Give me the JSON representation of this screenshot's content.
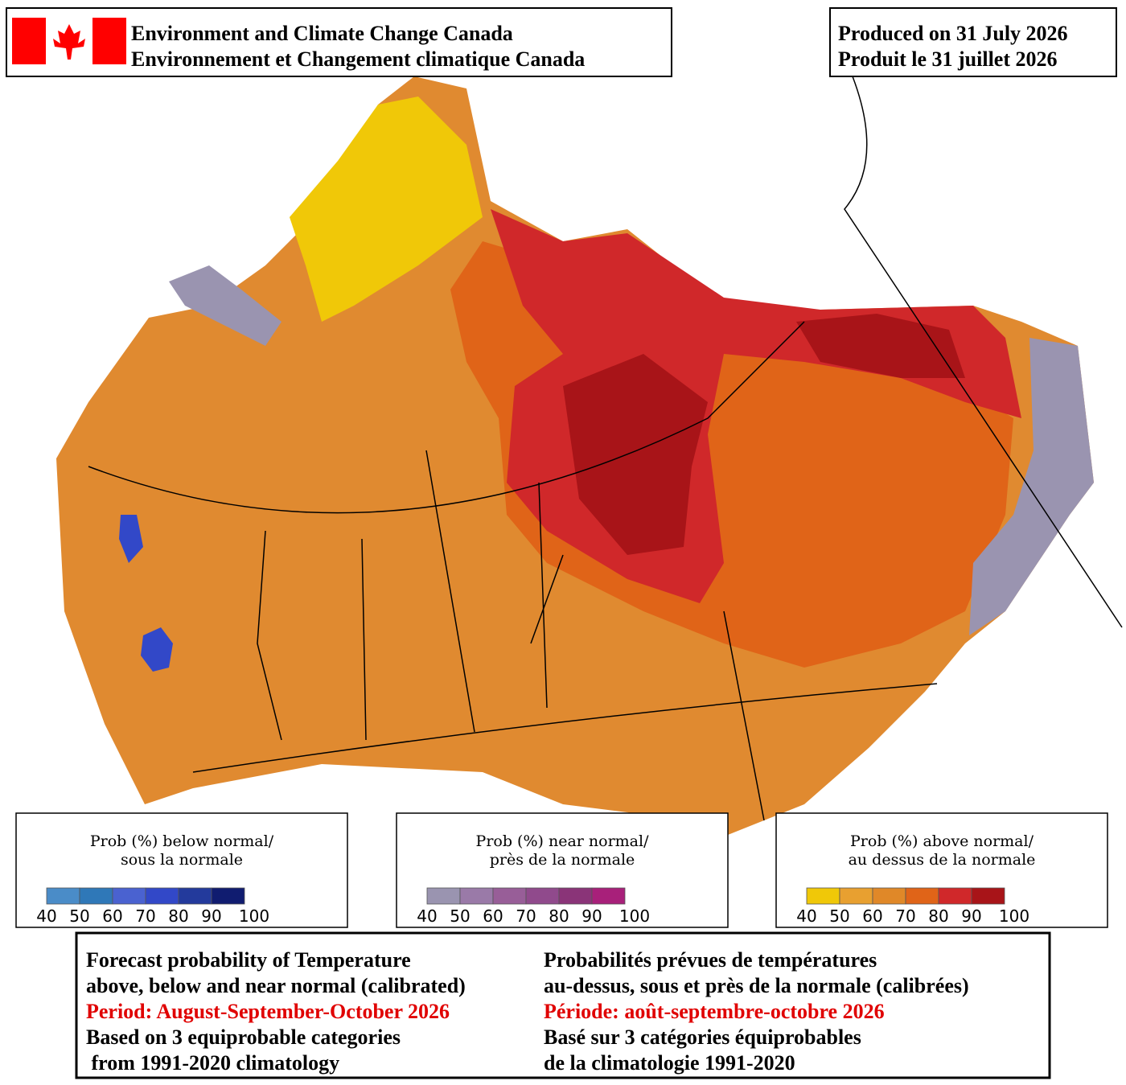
{
  "header": {
    "agency_en": "Environment and Climate Change Canada",
    "agency_fr": "Environnement et Changement climatique Canada",
    "produced_en": "Produced on 31 July 2026",
    "produced_fr": "Produit le 31 juillet 2026"
  },
  "legends": [
    {
      "title": [
        "Prob (%) below normal/",
        "sous la normale"
      ],
      "colors": [
        "#4a8cc8",
        "#2f78b8",
        "#4a62d0",
        "#3248c8",
        "#233a9c",
        "#101c70"
      ],
      "ticks": [
        40,
        50,
        60,
        70,
        80,
        90,
        100
      ]
    },
    {
      "title": [
        "Prob (%) near normal/",
        "près de la normale"
      ],
      "colors": [
        "#9a94b0",
        "#9a7aa8",
        "#985e98",
        "#904a8c",
        "#8a3478",
        "#a8207a"
      ],
      "ticks": [
        40,
        50,
        60,
        70,
        80,
        90,
        100
      ]
    },
    {
      "title": [
        "Prob (%) above normal/",
        "au dessus de la normale"
      ],
      "colors": [
        "#f0c808",
        "#e8a030",
        "#e08828",
        "#e06418",
        "#d0282a",
        "#a81418"
      ],
      "ticks": [
        40,
        50,
        60,
        70,
        80,
        90,
        100
      ]
    }
  ],
  "footer": {
    "left": [
      {
        "text": "Forecast probability of Temperature",
        "color": "#000000"
      },
      {
        "text": "above, below and near normal (calibrated)",
        "color": "#000000"
      },
      {
        "text": "Period: August-September-October 2026",
        "color": "#e00000"
      },
      {
        "text": "Based on 3 equiprobable categories",
        "color": "#000000"
      },
      {
        "text": " from 1991-2020 climatology",
        "color": "#000000"
      }
    ],
    "right": [
      {
        "text": "Probabilités prévues de températures",
        "color": "#000000"
      },
      {
        "text": "au-dessus, sous et près de la normale (calibrées)",
        "color": "#000000"
      },
      {
        "text": "Période: août-septembre-octobre 2026",
        "color": "#e00000"
      },
      {
        "text": "Basé sur 3 catégories équiprobables",
        "color": "#000000"
      },
      {
        "text": "de la climatologie 1991-2020",
        "color": "#000000"
      }
    ]
  }
}
